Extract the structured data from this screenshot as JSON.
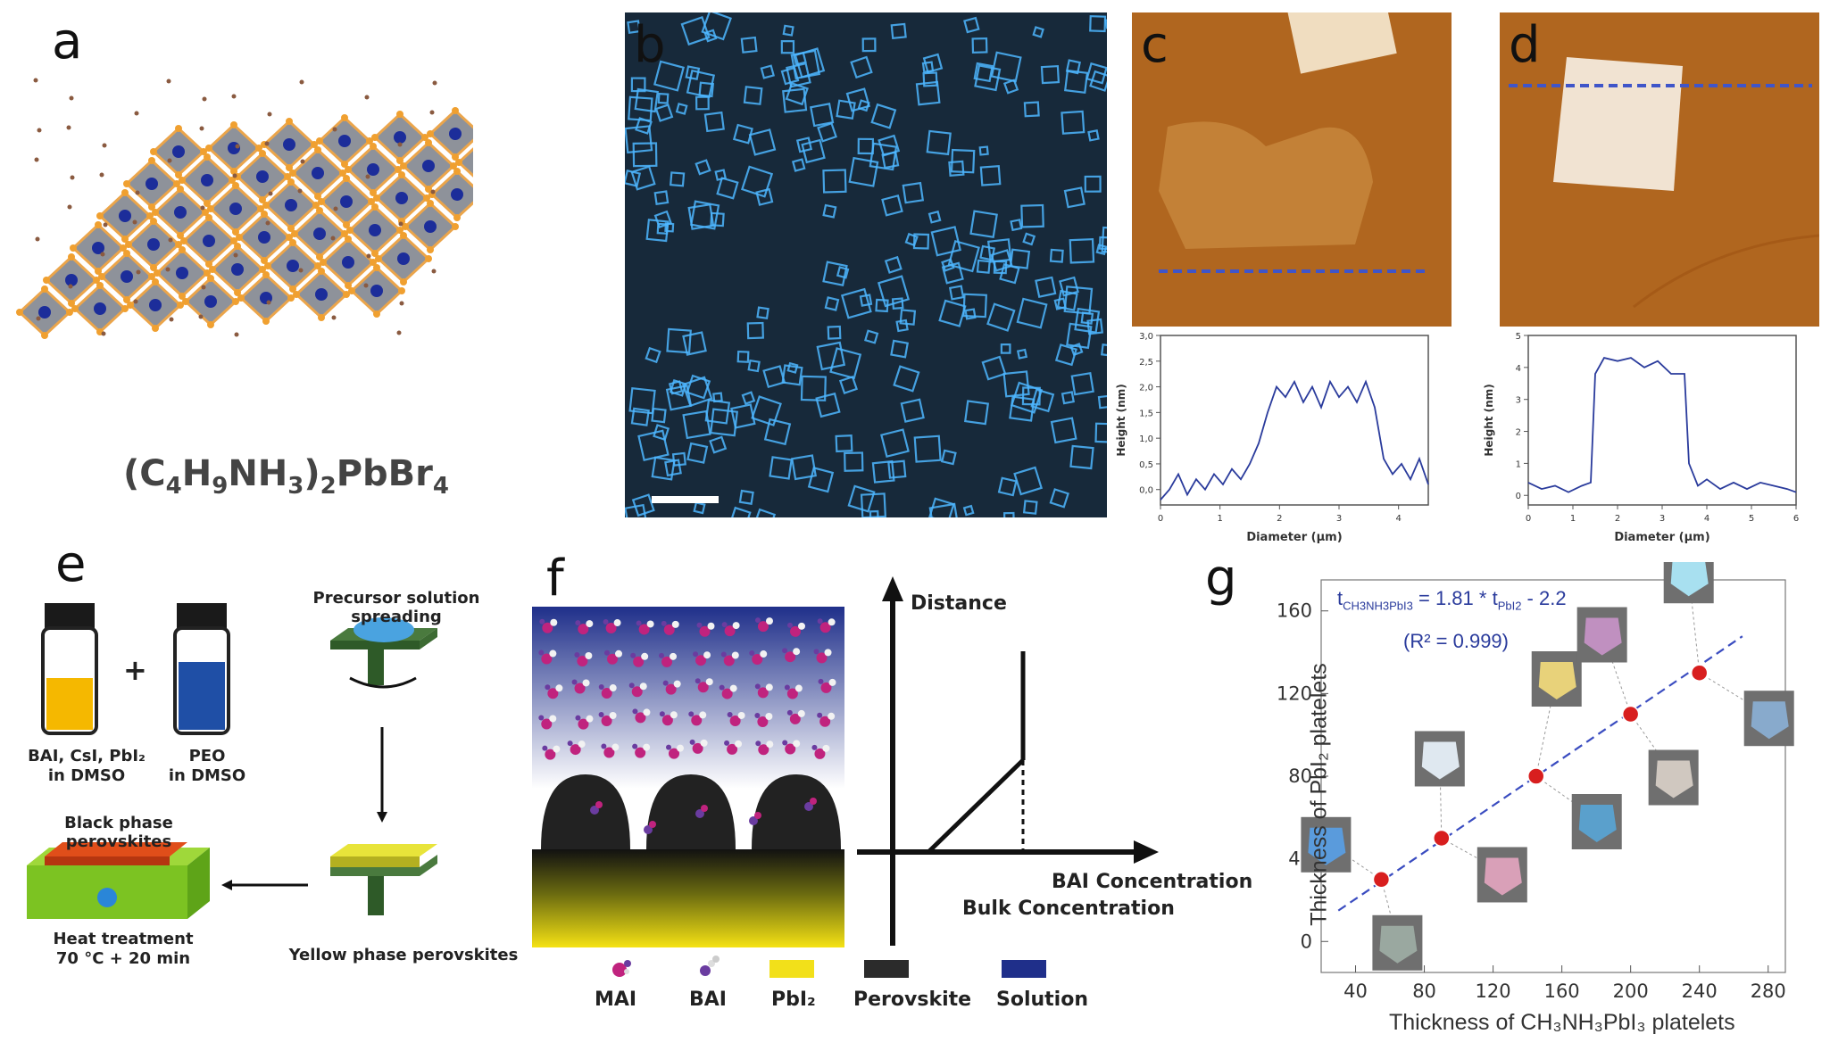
{
  "panels": {
    "a": {
      "letter": "a",
      "formula": "(C4H9NH3)2PbBr4",
      "formula_parts": [
        "(C",
        "4",
        "H",
        "9",
        "NH",
        "3",
        ")",
        "2",
        "PbBr",
        "4"
      ]
    },
    "b": {
      "letter": "b"
    },
    "c": {
      "letter": "c",
      "chart": {
        "xlabel": "Diameter (μm)",
        "ylabel": "Height (nm)",
        "xticks": [
          "0",
          "1",
          "2",
          "3",
          "4"
        ],
        "yticks": [
          "0,0",
          "0,5",
          "1,0",
          "1,5",
          "2,0",
          "2,5",
          "3,0"
        ]
      }
    },
    "d": {
      "letter": "d",
      "chart": {
        "xlabel": "Diameter (μm)",
        "ylabel": "Height (nm)",
        "xticks": [
          "0",
          "1",
          "2",
          "3",
          "4",
          "5",
          "6"
        ],
        "yticks": [
          "0",
          "1",
          "2",
          "3",
          "4",
          "5"
        ]
      }
    },
    "e": {
      "letter": "e",
      "vial1": "BAI, CsI, PbI₂\nin DMSO",
      "vial1_l1": "BAI, CsI, PbI₂",
      "vial1_l2": "in DMSO",
      "plus": "+",
      "vial2_l1": "PEO",
      "vial2_l2": "in DMSO",
      "step1": "Precursor solution spreading",
      "step2": "Yellow phase perovskites",
      "step3": "Black phase perovskites",
      "heat_l1": "Heat treatment",
      "heat_l2": "70 °C + 20 min"
    },
    "f": {
      "letter": "f",
      "distance": "Distance",
      "bai_conc": "BAI Concentration",
      "bulk_conc": "Bulk Concentration",
      "legend": [
        "MAI",
        "BAI",
        "PbI₂",
        "Perovskite",
        "Solution"
      ],
      "legend_colors": [
        "#c0237e",
        "#6a3ca0",
        "#f2e01a",
        "#2b2b2b",
        "#1f2f8a"
      ]
    },
    "g": {
      "letter": "g",
      "equation": "t",
      "eq_sub1": "CH3NH3PbI3",
      "eq_mid": " = 1.81 * t",
      "eq_sub2": "PbI2",
      "eq_end": " - 2.2",
      "r2": "(R² = 0.999)",
      "xlabel": "Thickness of CH₃NH₃PbI₃ platelets",
      "ylabel": "Thickness of PbI₂ platelets"
    }
  },
  "chart_data": [
    {
      "type": "line",
      "panel": "c",
      "xlabel": "Diameter (μm)",
      "ylabel": "Height (nm)",
      "xlim": [
        0,
        4.5
      ],
      "ylim": [
        -0.3,
        3.0
      ],
      "x": [
        0,
        0.15,
        0.3,
        0.45,
        0.6,
        0.75,
        0.9,
        1.05,
        1.2,
        1.35,
        1.5,
        1.65,
        1.8,
        1.95,
        2.1,
        2.25,
        2.4,
        2.55,
        2.7,
        2.85,
        3.0,
        3.15,
        3.3,
        3.45,
        3.6,
        3.75,
        3.9,
        4.05,
        4.2,
        4.35,
        4.5
      ],
      "y": [
        -0.2,
        0.0,
        0.3,
        -0.1,
        0.2,
        0.0,
        0.3,
        0.1,
        0.4,
        0.2,
        0.5,
        0.9,
        1.5,
        2.0,
        1.8,
        2.1,
        1.7,
        2.0,
        1.6,
        2.1,
        1.8,
        2.0,
        1.7,
        2.1,
        1.6,
        0.6,
        0.3,
        0.5,
        0.2,
        0.6,
        0.1
      ]
    },
    {
      "type": "line",
      "panel": "d",
      "xlabel": "Diameter (μm)",
      "ylabel": "Height (nm)",
      "xlim": [
        0,
        6
      ],
      "ylim": [
        -0.3,
        5
      ],
      "x": [
        0,
        0.3,
        0.6,
        0.9,
        1.2,
        1.4,
        1.5,
        1.7,
        2.0,
        2.3,
        2.6,
        2.9,
        3.2,
        3.5,
        3.6,
        3.8,
        4.0,
        4.3,
        4.6,
        4.9,
        5.2,
        5.5,
        5.8,
        6.0
      ],
      "y": [
        0.4,
        0.2,
        0.3,
        0.1,
        0.3,
        0.4,
        3.8,
        4.3,
        4.2,
        4.3,
        4.0,
        4.2,
        3.8,
        3.8,
        1.0,
        0.3,
        0.5,
        0.2,
        0.4,
        0.2,
        0.4,
        0.3,
        0.2,
        0.1
      ]
    },
    {
      "type": "scatter",
      "panel": "g",
      "xlabel": "Thickness of CH₃NH₃PbI₃ platelets",
      "ylabel": "Thickness of PbI₂ platelets",
      "xlim": [
        20,
        290
      ],
      "ylim": [
        -15,
        175
      ],
      "xticks": [
        40,
        80,
        120,
        160,
        200,
        240,
        280
      ],
      "yticks": [
        0,
        40,
        80,
        120,
        160
      ],
      "x": [
        55,
        90,
        145,
        200,
        240
      ],
      "y": [
        30,
        50,
        80,
        110,
        130
      ],
      "fit": {
        "slope": 1.81,
        "intercept": -2.2,
        "r2": 0.999
      }
    }
  ],
  "colors": {
    "afm_bg": "#b0661f",
    "afm_dark": "#8a4c12",
    "micro_bg": "#1b2c3c",
    "micro_crystal": "#4db6ff",
    "plot_line": "#2a3b9c",
    "fit_line": "#3a4cc0",
    "point": "#d81e1e"
  }
}
